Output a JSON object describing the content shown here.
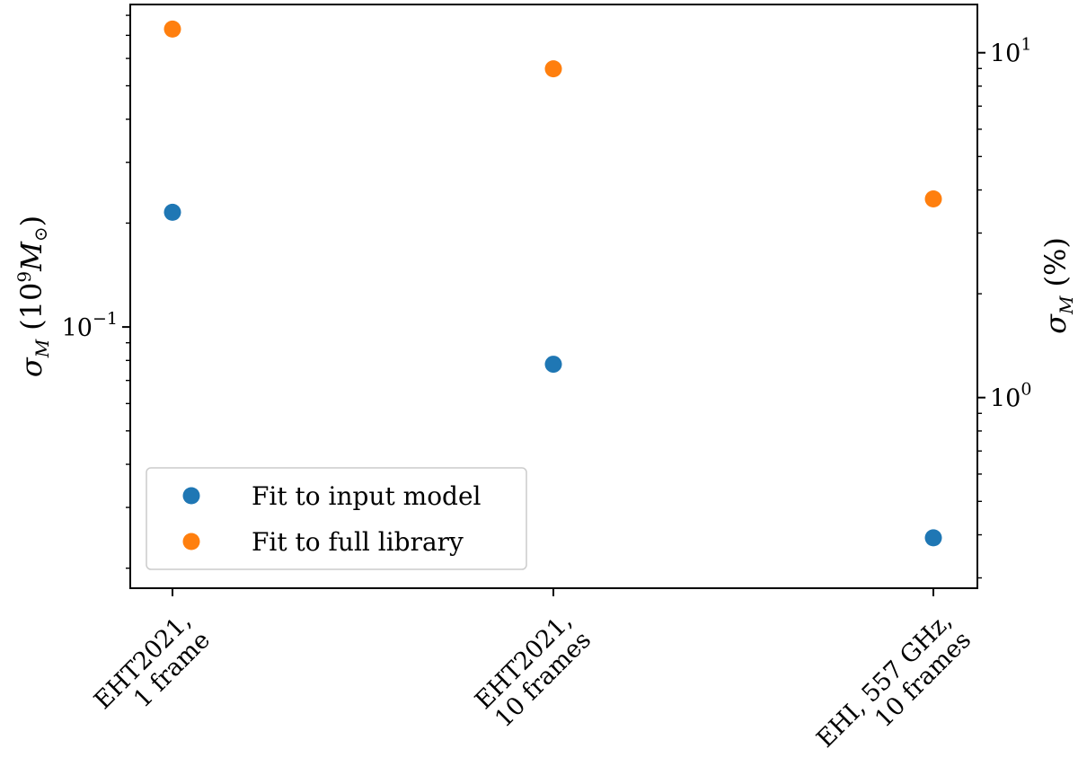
{
  "chart_data": {
    "type": "scatter",
    "categories": [
      "EHT2021,\n1 frame",
      "EHT2021,\n10 frames",
      "EHI, 557 GHz,\n10 frames"
    ],
    "series": [
      {
        "name": "Fit to input model",
        "color": "#1f77b4",
        "values": [
          0.215,
          0.078,
          0.0245
        ]
      },
      {
        "name": "Fit to full library",
        "color": "#ff7f0e",
        "values": [
          0.73,
          0.56,
          0.235
        ]
      }
    ],
    "y_left": {
      "label_main": "σ",
      "label_sub": "M",
      "label_rest": "(10",
      "label_sup": "9",
      "label_unit": "M",
      "label_unit_sub": "⊙",
      "label_close": ")",
      "scale": "log",
      "ylim": [
        0.0175,
        0.86
      ],
      "major_ticks": [
        {
          "value": 0.1,
          "base": "10",
          "exp": "−1"
        }
      ]
    },
    "y_right": {
      "label_main": "σ",
      "label_sub": "M",
      "label_rest": "(%)",
      "scale": "log",
      "ylim": [
        0.28,
        13.8
      ],
      "major_ticks": [
        {
          "value": 1,
          "base": "10",
          "exp": "0"
        },
        {
          "value": 10,
          "base": "10",
          "exp": "1"
        }
      ]
    },
    "legend": {
      "placement": "lower-left"
    },
    "grid": false
  }
}
